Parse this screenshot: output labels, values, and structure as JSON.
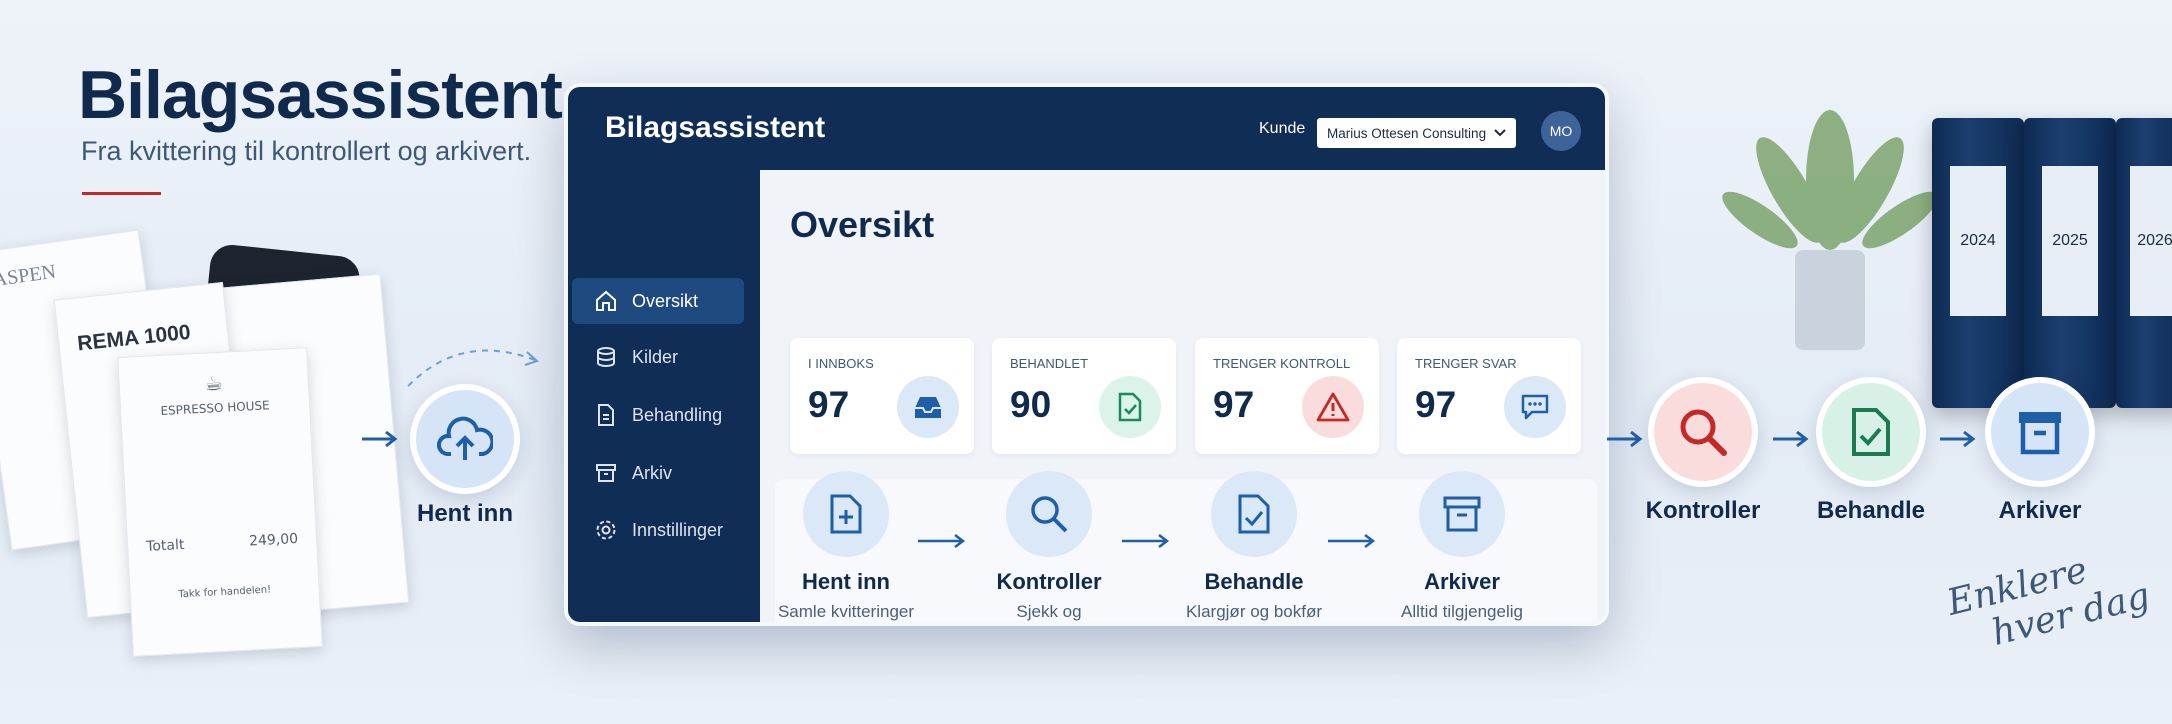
{
  "hero": {
    "title": "Bilagsassistent",
    "subtitle": "Fra kvittering til kontrollert og arkivert."
  },
  "receipts": {
    "brands": [
      "ASPEN",
      "REMA 1000",
      "ESPRESSO HOUSE"
    ],
    "total_label": "Totalt",
    "total_amount": "249,00",
    "thanks": "Takk for handelen!"
  },
  "app": {
    "title": "Bilagsassistent",
    "customer_label": "Kunde",
    "customer": "Marius Ottesen Consulting",
    "avatar": "MO",
    "nav": [
      "Oversikt",
      "Kilder",
      "Behandling",
      "Arkiv",
      "Innstillinger"
    ],
    "page_title": "Oversikt",
    "stats": [
      {
        "label": "I INNBOKS",
        "value": 97
      },
      {
        "label": "BEHANDLET",
        "value": 90
      },
      {
        "label": "TRENGER KONTROLL",
        "value": 97
      },
      {
        "label": "TRENGER SVAR",
        "value": 97
      }
    ],
    "steps": [
      {
        "title": "Hent inn",
        "desc": "Samle kvitteringer og dokumenter"
      },
      {
        "title": "Kontroller",
        "desc": "Sjekk og kvalitetssikre"
      },
      {
        "title": "Behandle",
        "desc": "Klargjør og bokfør"
      },
      {
        "title": "Arkiver",
        "desc": "Alltid tilgjengelig"
      }
    ]
  },
  "flow": [
    "Hent inn",
    "Kontroller",
    "Behandle",
    "Arkiver"
  ],
  "binders": [
    "2024",
    "2025",
    "2026"
  ],
  "tagline": [
    "Enklere",
    "hver dag"
  ]
}
